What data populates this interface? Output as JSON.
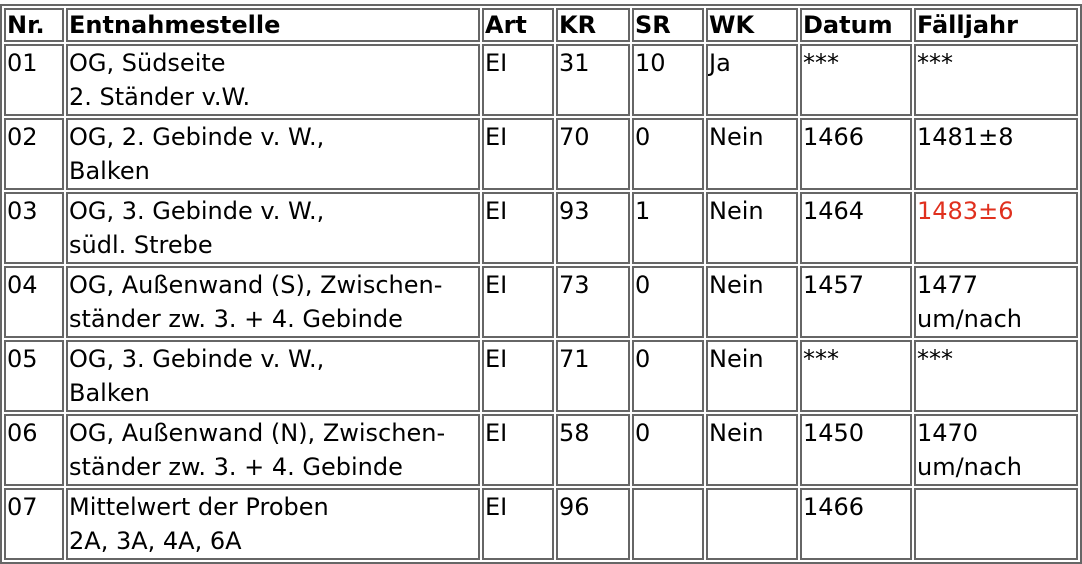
{
  "headers": [
    "Nr.",
    "Entnahmestelle",
    "Art",
    "KR",
    "SR",
    "WK",
    "Datum",
    "Fälljahr"
  ],
  "rows": [
    {
      "nr": "01",
      "stelle": [
        "OG, Südseite",
        "2. Ständer v.W."
      ],
      "art": "EI",
      "kr": "31",
      "sr": "10",
      "wk": "Ja",
      "datum": "***",
      "faelljahr": [
        "***",
        ""
      ],
      "highlight": false
    },
    {
      "nr": "02",
      "stelle": [
        "OG, 2. Gebinde v. W.,",
        "Balken"
      ],
      "art": "EI",
      "kr": "70",
      "sr": "0",
      "wk": "Nein",
      "datum": "1466",
      "faelljahr": [
        "1481±8",
        ""
      ],
      "highlight": false
    },
    {
      "nr": "03",
      "stelle": [
        "OG, 3. Gebinde v. W.,",
        "südl. Strebe"
      ],
      "art": "EI",
      "kr": "93",
      "sr": "1",
      "wk": "Nein",
      "datum": "1464",
      "faelljahr": [
        "1483±6",
        ""
      ],
      "highlight": true
    },
    {
      "nr": "04",
      "stelle": [
        "OG, Außenwand (S), Zwischen-",
        "ständer zw. 3. + 4. Gebinde"
      ],
      "art": "EI",
      "kr": "73",
      "sr": "0",
      "wk": "Nein",
      "datum": "1457",
      "faelljahr": [
        "1477",
        "um/nach"
      ],
      "highlight": false
    },
    {
      "nr": "05",
      "stelle": [
        "OG, 3. Gebinde v. W.,",
        "Balken"
      ],
      "art": "EI",
      "kr": "71",
      "sr": "0",
      "wk": "Nein",
      "datum": "***",
      "faelljahr": [
        "***",
        ""
      ],
      "highlight": false
    },
    {
      "nr": "06",
      "stelle": [
        "OG, Außenwand (N), Zwischen-",
        "ständer zw. 3. + 4. Gebinde"
      ],
      "art": "EI",
      "kr": "58",
      "sr": "0",
      "wk": "Nein",
      "datum": "1450",
      "faelljahr": [
        "1470",
        "um/nach"
      ],
      "highlight": false
    },
    {
      "nr": "07",
      "stelle": [
        "Mittelwert der Proben",
        "2A, 3A, 4A, 6A"
      ],
      "art": "EI",
      "kr": "96",
      "sr": "",
      "wk": "",
      "datum": "1466",
      "faelljahr": [
        "",
        ""
      ],
      "highlight": false
    }
  ],
  "colors": {
    "highlight": "#e0301e",
    "border": "#666666"
  }
}
